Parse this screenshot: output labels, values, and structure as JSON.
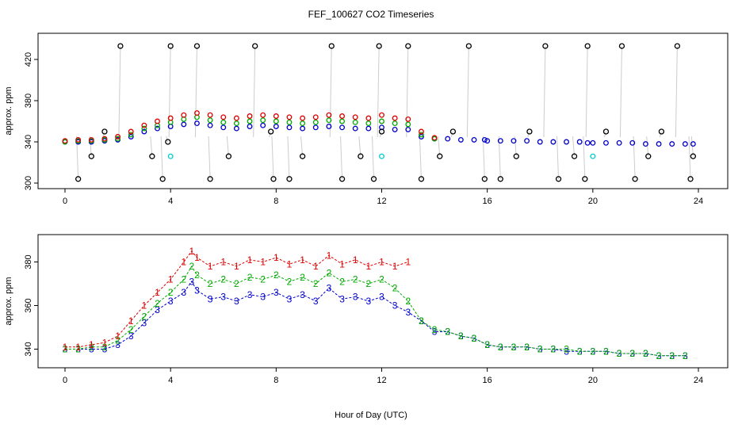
{
  "title": "FEF_100627  CO2 Timeseries",
  "xlabel": "Hour of Day (UTC)",
  "chart_data": [
    {
      "type": "scatter",
      "ylabel": "approx. ppm",
      "xlim": [
        0,
        24
      ],
      "ylim": [
        300,
        440
      ],
      "xticks": [
        0,
        4,
        8,
        12,
        16,
        20,
        24
      ],
      "yticks": [
        300,
        340,
        380,
        420
      ],
      "series": [
        {
          "color": "#0000cc",
          "x": [
            0.0,
            0.5,
            1.0,
            1.5,
            2.0,
            2.5,
            3.0,
            3.5,
            4.0,
            4.5,
            5.0,
            5.5,
            6.0,
            6.5,
            7.0,
            7.5,
            8.0,
            8.5,
            9.0,
            9.5,
            10.0,
            10.5,
            11.0,
            11.5,
            12.0,
            12.5,
            13.0,
            13.5,
            14.0,
            14.5,
            15.0,
            15.5,
            15.9,
            16.0,
            16.5,
            17.0,
            17.5,
            18.0,
            18.5,
            19.0,
            19.5,
            19.8,
            20.0,
            20.5,
            21.0,
            21.5,
            22.0,
            22.5,
            23.0,
            23.5,
            23.8
          ],
          "values": [
            340,
            340,
            340,
            341,
            342,
            345,
            350,
            353,
            355,
            357,
            358,
            356,
            354,
            353,
            355,
            356,
            355,
            354,
            353,
            354,
            355,
            354,
            353,
            353,
            354,
            352,
            352,
            345,
            343,
            343,
            342,
            342,
            342,
            341,
            341,
            341,
            341,
            340,
            340,
            340,
            340,
            339,
            339,
            339,
            339,
            339,
            338,
            338,
            338,
            338,
            338
          ]
        },
        {
          "color": "#00aa00",
          "x": [
            0.0,
            0.5,
            1.0,
            1.5,
            2.0,
            2.5,
            3.0,
            3.5,
            4.0,
            4.5,
            5.0,
            5.5,
            6.0,
            6.5,
            7.0,
            7.5,
            8.0,
            8.5,
            9.0,
            9.5,
            10.0,
            10.5,
            11.0,
            11.5,
            12.0,
            12.5,
            13.0,
            13.5,
            14.0
          ],
          "values": [
            340,
            341,
            341,
            342,
            343,
            347,
            353,
            356,
            359,
            362,
            364,
            361,
            359,
            358,
            360,
            361,
            360,
            359,
            358,
            359,
            361,
            360,
            359,
            358,
            360,
            358,
            357,
            347,
            343
          ]
        },
        {
          "color": "#dd0000",
          "x": [
            0.0,
            0.5,
            1.0,
            1.5,
            2.0,
            2.5,
            3.0,
            3.5,
            4.0,
            4.5,
            5.0,
            5.5,
            6.0,
            6.5,
            7.0,
            7.5,
            8.0,
            8.5,
            9.0,
            9.5,
            10.0,
            10.5,
            11.0,
            11.5,
            12.0,
            12.5,
            13.0,
            13.5,
            14.0
          ],
          "values": [
            341,
            342,
            342,
            343,
            345,
            350,
            356,
            360,
            363,
            366,
            368,
            366,
            364,
            363,
            365,
            366,
            365,
            364,
            363,
            364,
            366,
            365,
            364,
            363,
            366,
            363,
            362,
            350,
            344
          ]
        },
        {
          "color": "#000000",
          "x": [
            0.5,
            1.0,
            1.5,
            2.1,
            3.3,
            3.7,
            3.9,
            4.0,
            5.0,
            5.5,
            6.2,
            7.2,
            7.8,
            7.9,
            8.5,
            9.0,
            10.1,
            10.5,
            11.2,
            11.7,
            11.9,
            12.0,
            13.0,
            13.5,
            14.2,
            14.7,
            15.3,
            15.9,
            16.5,
            17.1,
            17.6,
            18.2,
            18.7,
            19.3,
            19.7,
            19.8,
            20.5,
            21.1,
            21.6,
            22.1,
            22.6,
            23.2,
            23.7,
            23.8
          ],
          "values": [
            304,
            326,
            350,
            433,
            326,
            304,
            340,
            433,
            433,
            304,
            326,
            433,
            350,
            304,
            304,
            326,
            433,
            304,
            326,
            304,
            433,
            350,
            433,
            304,
            326,
            350,
            433,
            304,
            304,
            326,
            350,
            433,
            304,
            326,
            304,
            433,
            350,
            433,
            304,
            326,
            350,
            433,
            304,
            326
          ]
        },
        {
          "color": "#00cccc",
          "x": [
            4.0,
            12.0,
            20.0
          ],
          "values": [
            326,
            326,
            326
          ]
        }
      ]
    },
    {
      "type": "scatter",
      "ylabel": "approx. ppm",
      "xlim": [
        0,
        24
      ],
      "ylim": [
        334,
        390
      ],
      "xticks": [
        0,
        4,
        8,
        12,
        16,
        20,
        24
      ],
      "yticks": [
        340,
        360,
        380
      ],
      "series": [
        {
          "name": "1",
          "color": "#dd0000",
          "x": [
            0.0,
            0.5,
            1.0,
            1.5,
            2.0,
            2.5,
            3.0,
            3.5,
            4.0,
            4.5,
            4.8,
            5.0,
            5.5,
            6.0,
            6.5,
            7.0,
            7.5,
            8.0,
            8.5,
            9.0,
            9.5,
            10.0,
            10.5,
            11.0,
            11.5,
            12.0,
            12.5,
            13.0
          ],
          "values": [
            341,
            341,
            342,
            343,
            346,
            353,
            360,
            366,
            372,
            380,
            385,
            382,
            378,
            380,
            378,
            381,
            380,
            382,
            379,
            381,
            378,
            383,
            379,
            381,
            378,
            380,
            378,
            380
          ]
        },
        {
          "name": "2",
          "color": "#00aa00",
          "x": [
            0.0,
            0.5,
            1.0,
            1.5,
            2.0,
            2.5,
            3.0,
            3.5,
            4.0,
            4.5,
            4.8,
            5.0,
            5.5,
            6.0,
            6.5,
            7.0,
            7.5,
            8.0,
            8.5,
            9.0,
            9.5,
            10.0,
            10.5,
            11.0,
            11.5,
            12.0,
            12.5,
            13.0,
            13.5,
            14.0,
            14.5,
            15.0,
            15.5,
            16.0,
            16.5,
            17.0,
            17.5,
            18.0,
            18.5,
            19.0,
            19.5,
            20.0,
            20.5,
            21.0,
            21.5,
            22.0,
            22.5,
            23.0,
            23.5
          ],
          "values": [
            340,
            340,
            341,
            341,
            344,
            349,
            355,
            361,
            366,
            372,
            378,
            374,
            370,
            372,
            370,
            373,
            372,
            374,
            371,
            373,
            370,
            375,
            371,
            372,
            370,
            372,
            368,
            362,
            353,
            349,
            348,
            346,
            345,
            342,
            341,
            341,
            341,
            340,
            340,
            340,
            339,
            339,
            339,
            338,
            338,
            338,
            337,
            337,
            337
          ]
        },
        {
          "name": "3",
          "color": "#0000cc",
          "x": [
            0.0,
            0.5,
            1.0,
            1.5,
            2.0,
            2.5,
            3.0,
            3.5,
            4.0,
            4.5,
            4.8,
            5.0,
            5.5,
            6.0,
            6.5,
            7.0,
            7.5,
            8.0,
            8.5,
            9.0,
            9.5,
            10.0,
            10.5,
            11.0,
            11.5,
            12.0,
            12.5,
            13.0,
            13.5,
            14.0,
            14.5,
            15.0,
            15.5,
            16.0,
            16.5,
            17.0,
            17.5,
            18.0,
            18.5,
            19.0,
            19.5,
            20.0,
            20.5,
            21.0,
            21.5,
            22.0,
            22.5,
            23.0,
            23.5
          ],
          "values": [
            340,
            340,
            340,
            340,
            342,
            346,
            352,
            358,
            362,
            366,
            371,
            367,
            363,
            364,
            362,
            365,
            364,
            366,
            363,
            365,
            362,
            368,
            363,
            364,
            362,
            364,
            360,
            357,
            353,
            348,
            348,
            346,
            345,
            342,
            341,
            341,
            341,
            340,
            340,
            339,
            339,
            339,
            339,
            338,
            338,
            338,
            337,
            337,
            337
          ]
        }
      ]
    }
  ]
}
